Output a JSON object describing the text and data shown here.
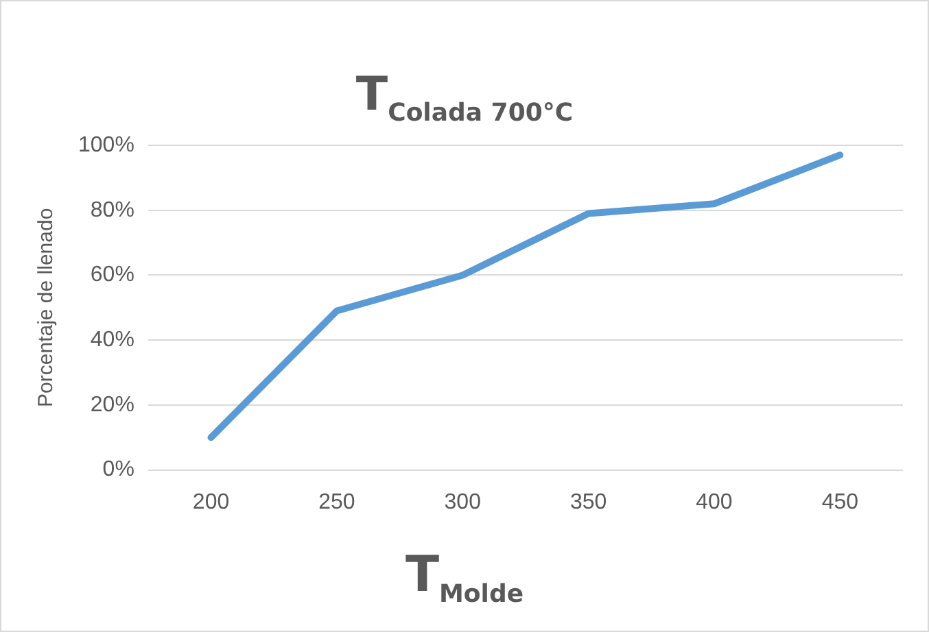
{
  "chart_data": {
    "type": "line",
    "title": "T$_{Colada  700°C}$",
    "xlabel": "T$_{Molde}$",
    "ylabel": "Porcentaje de llenado",
    "categories": [
      "200",
      "250",
      "300",
      "350",
      "400",
      "450"
    ],
    "series": [
      {
        "color": "#5b9bd5",
        "values": [
          10,
          49,
          60,
          79,
          82,
          97
        ]
      }
    ],
    "ylim": [
      0,
      100
    ],
    "yticks": [
      {
        "value": 0,
        "label": "0%"
      },
      {
        "value": 20,
        "label": "20%"
      },
      {
        "value": 40,
        "label": "40%"
      },
      {
        "value": 60,
        "label": "60%"
      },
      {
        "value": 80,
        "label": "80%"
      },
      {
        "value": 100,
        "label": "100%"
      }
    ],
    "grid": "y",
    "legend": false,
    "marker": "none",
    "line_style": "solid"
  }
}
